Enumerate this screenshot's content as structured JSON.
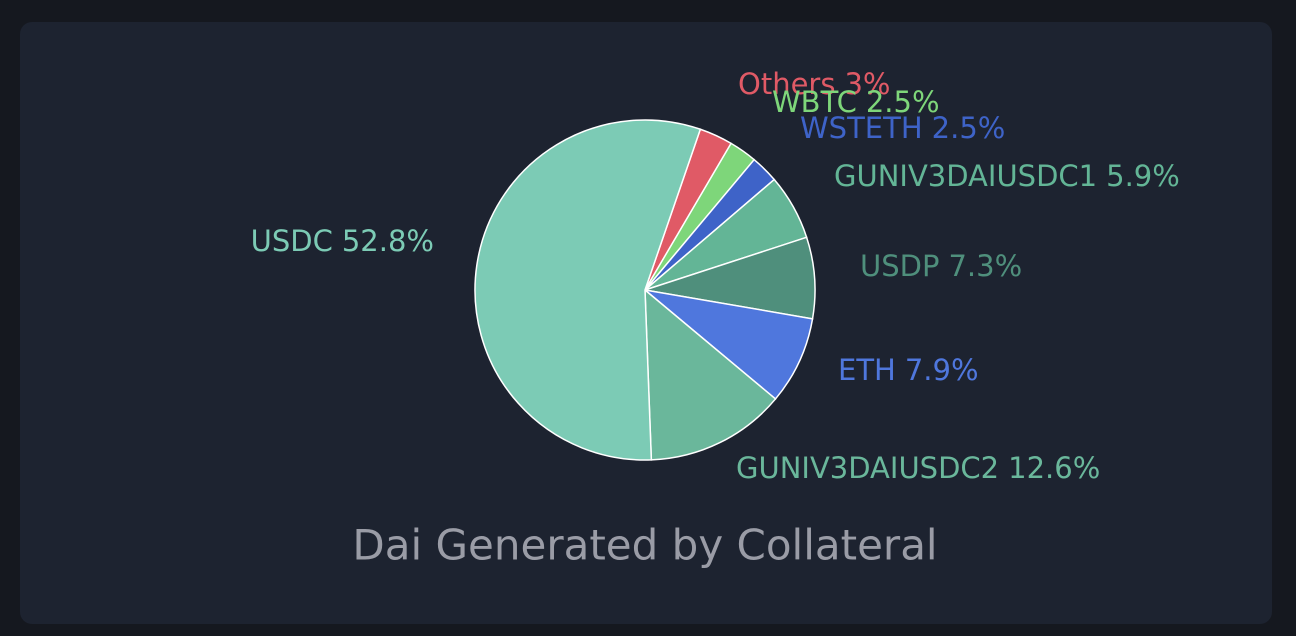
{
  "chart_data": {
    "type": "pie",
    "title": "Dai Generated by Collateral",
    "categories": [
      "Others",
      "WBTC",
      "WSTETH",
      "GUNIV3DAIUSDC1",
      "USDP",
      "ETH",
      "GUNIV3DAIUSDC2",
      "USDC"
    ],
    "values": [
      3,
      2.5,
      2.5,
      5.9,
      7.3,
      7.9,
      12.6,
      52.8
    ],
    "value_labels": [
      "3%",
      "2.5%",
      "2.5%",
      "5.9%",
      "7.3%",
      "7.9%",
      "12.6%",
      "52.8%"
    ],
    "colors": [
      "#e05a66",
      "#7ed67a",
      "#3e63c8",
      "#63b596",
      "#4f8f7c",
      "#4f77dd",
      "#6ab79b",
      "#7ccbb5"
    ]
  }
}
